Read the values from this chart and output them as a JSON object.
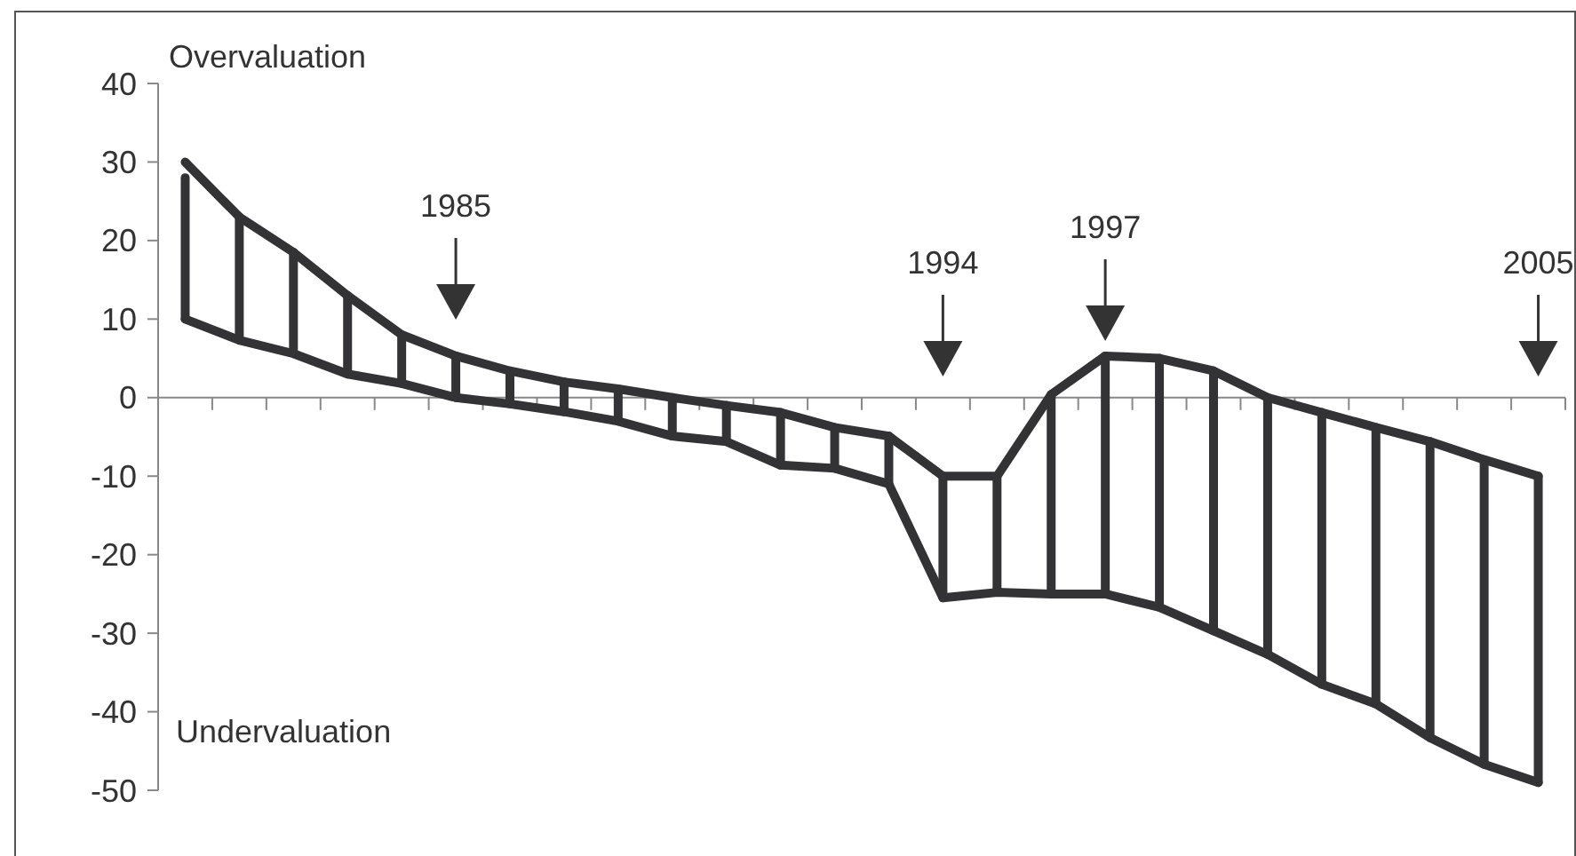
{
  "chart_data": {
    "type": "line",
    "categories": [
      null,
      null,
      null,
      null,
      null,
      null,
      null,
      null,
      null,
      null,
      null,
      null,
      null,
      null,
      null,
      null,
      null,
      null,
      null,
      null,
      null,
      null,
      null,
      null,
      null,
      null
    ],
    "series": [
      {
        "color": "#333336",
        "values": [
          30,
          23,
          18.5,
          13,
          8,
          5.3,
          3.4,
          2,
          1.1,
          0,
          -1,
          -1.9,
          -3.8,
          -4.9,
          -10,
          -10,
          0.4,
          5.3,
          5,
          3.4,
          0,
          -1.9,
          -3.8,
          -5.6,
          -7.9,
          -10
        ],
        "errors": [
          [
            10,
            28
          ],
          [
            7.3,
            23
          ],
          [
            5.6,
            18.5
          ],
          [
            3,
            13
          ],
          [
            1.8,
            8
          ],
          [
            0,
            5.3
          ],
          [
            -0.8,
            3.4
          ],
          [
            -1.8,
            2
          ],
          [
            -3,
            1.1
          ],
          [
            -4.9,
            0
          ],
          [
            -5.6,
            -1
          ],
          [
            -8.6,
            -1.9
          ],
          [
            -9,
            -3.8
          ],
          [
            -11,
            -4.9
          ],
          [
            -25.5,
            -10
          ],
          [
            -24.8,
            -10
          ],
          [
            -25,
            0.4
          ],
          [
            -25,
            5.3
          ],
          [
            -26.7,
            5
          ],
          [
            -29.7,
            3.4
          ],
          [
            -32.7,
            0
          ],
          [
            -36.5,
            -1.9
          ],
          [
            -39,
            -3.8
          ],
          [
            -43.3,
            -5.6
          ],
          [
            -46.7,
            -7.9
          ],
          [
            -49,
            -10
          ]
        ]
      },
      {
        "color": "#333336",
        "values": [
          10,
          7.3,
          5.6,
          3,
          1.8,
          0,
          -0.8,
          -1.8,
          -3,
          -4.9,
          -5.6,
          -8.6,
          -9,
          -11,
          -25.5,
          -24.8,
          -25,
          -25,
          -26.7,
          -29.7,
          -32.7,
          -36.5,
          -39,
          -43.3,
          -46.7,
          -49
        ]
      }
    ],
    "ylim": [
      -50,
      40
    ],
    "yticks": [
      -50,
      -40,
      -30,
      -20,
      -10,
      0,
      10,
      20,
      30,
      40
    ],
    "tick_labels": "y",
    "annotations": [
      "Overvaluation",
      "Undervaluation",
      "1985",
      "1994",
      "1997",
      "2005"
    ]
  }
}
